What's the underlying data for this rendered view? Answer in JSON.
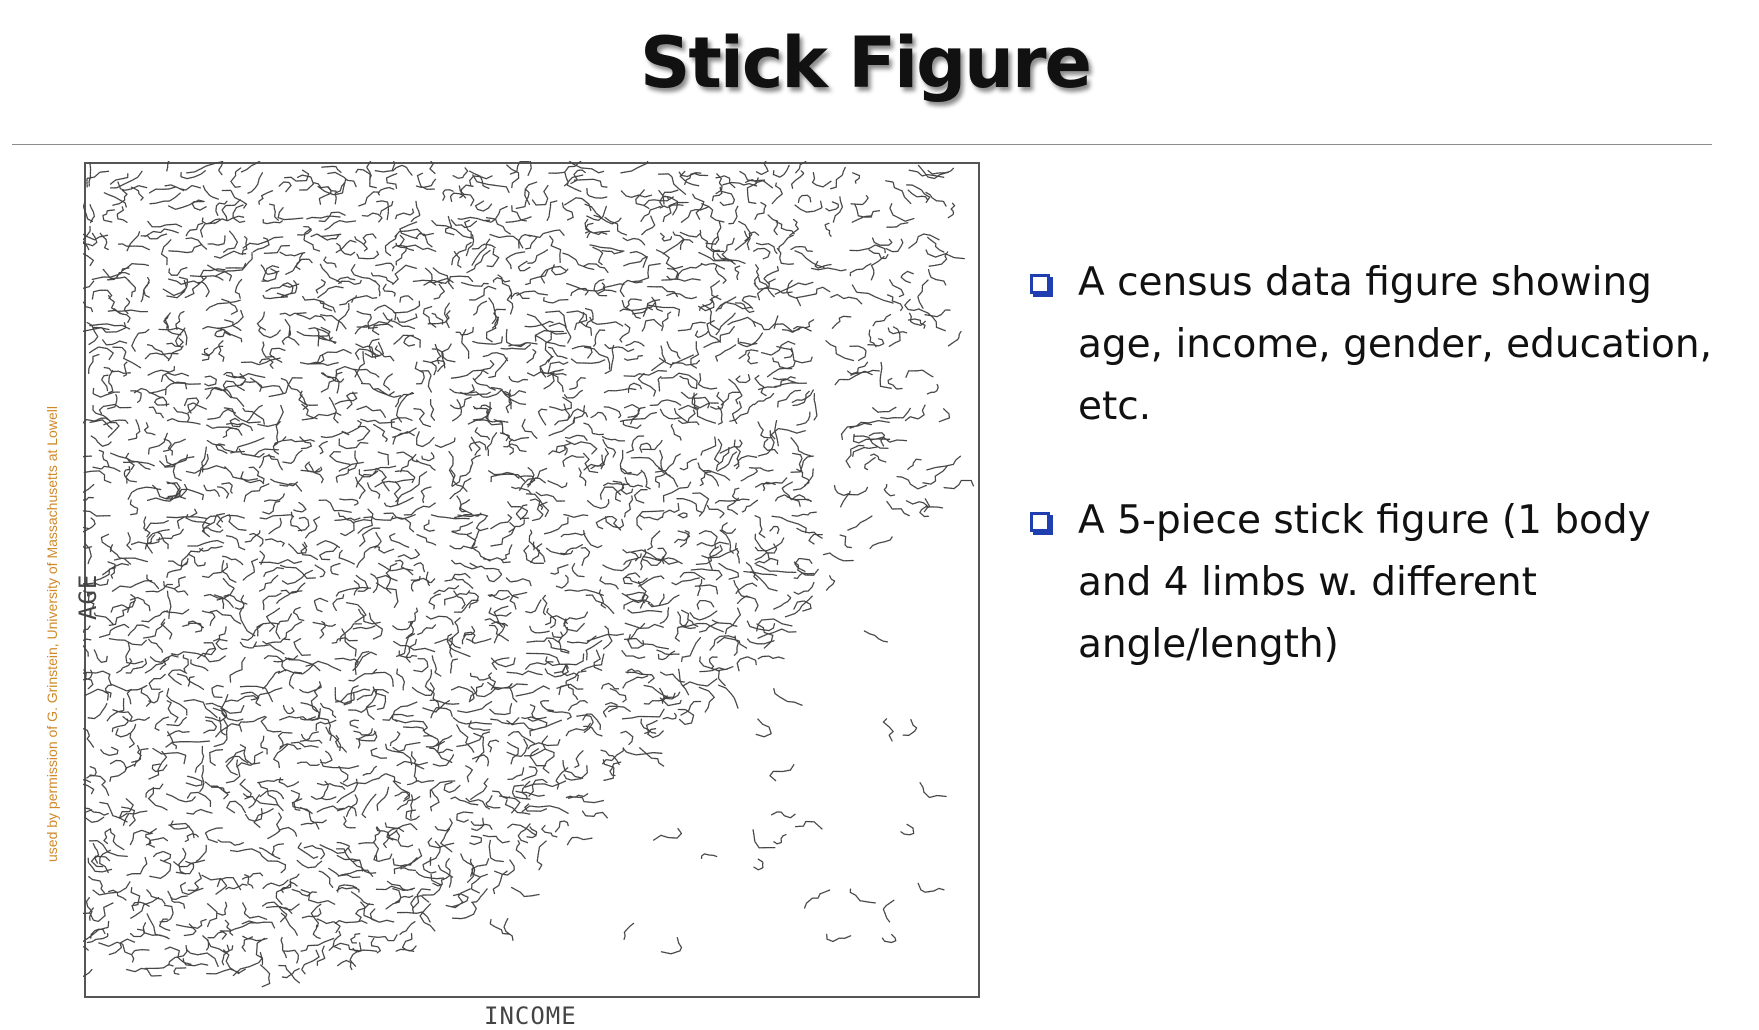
{
  "slide": {
    "title": "Stick Figure"
  },
  "figure": {
    "credit": "used by permission of G. Grinstein, University of Massachusetts at Lowell",
    "y_axis_label": "AGE",
    "x_axis_label": "INCOME",
    "ink_color": "#444444",
    "credit_color": "#d08a2a"
  },
  "bullets": [
    {
      "text": "A census data figure showing age, income, gender, education, etc.",
      "icon": "square-bullet-icon"
    },
    {
      "text": "A 5-piece stick figure (1 body and 4 limbs w. different angle/length)",
      "icon": "square-bullet-icon"
    }
  ],
  "colors": {
    "bullet": "#1f3fb0",
    "text": "#111111",
    "rule": "#8c8c8c"
  }
}
